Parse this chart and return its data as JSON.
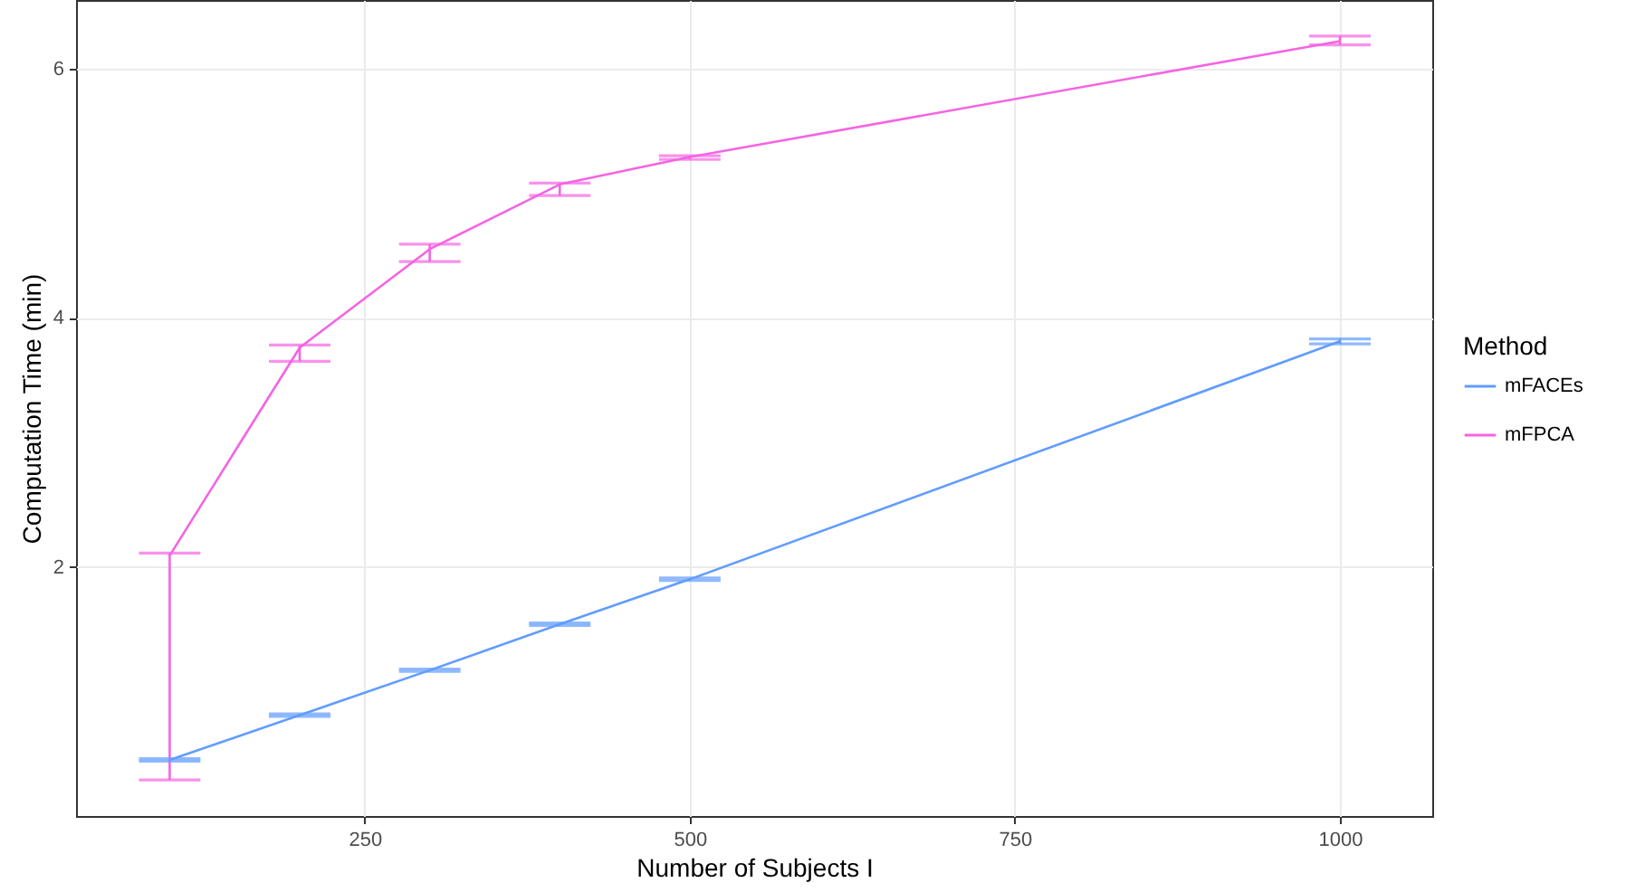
{
  "chart_data": {
    "type": "line",
    "xlabel": "Number of Subjects I",
    "ylabel": "Computation Time (min)",
    "legend_title": "Method",
    "x": [
      100,
      200,
      300,
      400,
      500,
      1000
    ],
    "series": [
      {
        "name": "mFACEs",
        "color": "#619cff",
        "values": [
          0.45,
          0.81,
          1.17,
          1.54,
          1.9,
          3.81
        ],
        "errors": [
          [
            0.44,
            0.46
          ],
          [
            0.8,
            0.82
          ],
          [
            1.16,
            1.18
          ],
          [
            1.53,
            1.55
          ],
          [
            1.89,
            1.91
          ],
          [
            3.79,
            3.83
          ]
        ]
      },
      {
        "name": "mFPCA",
        "color": "#f564e3",
        "values": [
          2.09,
          3.76,
          4.55,
          5.07,
          5.29,
          6.22
        ],
        "errors": [
          [
            0.29,
            2.11
          ],
          [
            3.65,
            3.78
          ],
          [
            4.45,
            4.59
          ],
          [
            4.98,
            5.08
          ],
          [
            5.27,
            5.3
          ],
          [
            6.19,
            6.26
          ]
        ]
      }
    ],
    "xlim": [
      28,
      1071
    ],
    "xticks": [
      250,
      500,
      750,
      1000
    ],
    "ylim": [
      0,
      6.55
    ],
    "yticks": [
      2,
      4,
      6
    ],
    "grid": true,
    "legend": "right",
    "line_style": "solid"
  }
}
